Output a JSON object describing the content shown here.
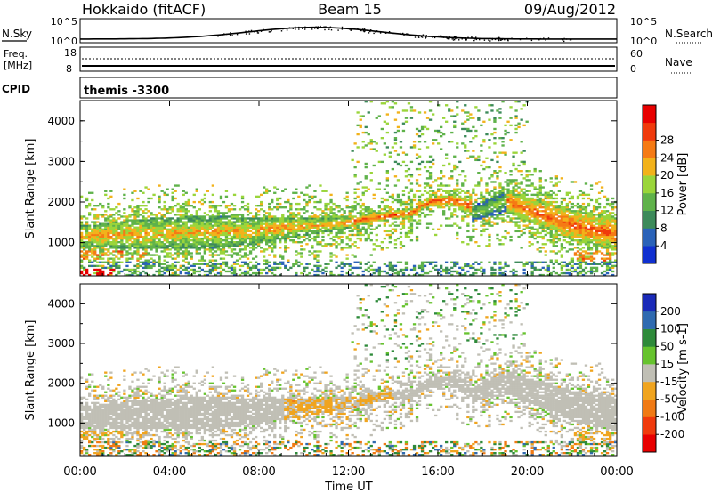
{
  "header": {
    "station": "Hokkaido (fitACF)",
    "beam": "Beam 15",
    "date": "09/Aug/2012"
  },
  "strips": {
    "nsky": {
      "label": "N.Sky",
      "tick_top": "10^5",
      "tick_bottom": "10^0"
    },
    "nsearch": {
      "label": "N.Search",
      "tick_top": "10^5",
      "tick_bottom": "10^0"
    },
    "freq": {
      "label_line1": "Freq.",
      "label_line2": "[MHz]",
      "tick_top": "18",
      "tick_bottom": "8"
    },
    "nave": {
      "label": "Nave",
      "tick_top": "60",
      "tick_bottom": "0"
    },
    "cpid": {
      "label": "CPID",
      "value": "themis -3300"
    }
  },
  "colors": {
    "power": [
      "#1030d0",
      "#2a62b8",
      "#3c8a5a",
      "#5fb24a",
      "#9ad53a",
      "#f2b21a",
      "#f57a14",
      "#f03a0c",
      "#e80000"
    ],
    "velocity": {
      "v200": "#1a2ab8",
      "v100": "#2f6ab0",
      "v50": "#2e8a3a",
      "v15": "#66c32e",
      "zero": "#c0bfb5",
      "n15": "#f0a41e",
      "n50": "#f07a14",
      "n100": "#f03a0c",
      "n200": "#e80000"
    }
  },
  "chart_data": [
    {
      "type": "heatmap",
      "title": "Power",
      "ylabel": "Slant Range [km]",
      "ylim": [
        180,
        4500
      ],
      "yticks": [
        "1000",
        "2000",
        "3000",
        "4000"
      ],
      "colorbar_label": "Power [dB]",
      "colorbar_ticks": [
        "4",
        "8",
        "12",
        "16",
        "20",
        "24",
        "28"
      ],
      "clim": [
        0,
        30
      ]
    },
    {
      "type": "heatmap",
      "title": "Velocity",
      "ylabel": "Slant Range [km]",
      "ylim": [
        180,
        4500
      ],
      "yticks": [
        "1000",
        "2000",
        "3000",
        "4000"
      ],
      "colorbar_label": "Velocity [m s-1]",
      "colorbar_ticks": [
        "200",
        "100",
        "50",
        "15",
        "-15",
        "-50",
        "-100",
        "-200"
      ],
      "clim": [
        -250,
        250
      ]
    }
  ],
  "xaxis": {
    "label": "Time UT",
    "ticks": [
      "00:00",
      "04:00",
      "08:00",
      "12:00",
      "16:00",
      "20:00",
      "00:00"
    ],
    "range_hours": [
      0,
      24
    ]
  }
}
